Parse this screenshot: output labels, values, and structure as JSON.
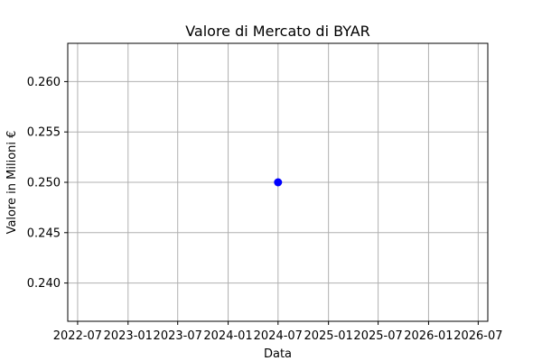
{
  "chart_data": {
    "type": "scatter",
    "title": "Valore di Mercato di BYAR",
    "xlabel": "Data",
    "ylabel": "Valore in Milioni €",
    "x_ticks": [
      "2022-07",
      "2023-01",
      "2023-07",
      "2024-01",
      "2024-07",
      "2025-01",
      "2025-07",
      "2026-01",
      "2026-07"
    ],
    "y_ticks": [
      "0.240",
      "0.245",
      "0.250",
      "0.255",
      "0.260"
    ],
    "xlim": [
      "2022-05-26",
      "2026-08-05"
    ],
    "ylim": [
      0.2362,
      0.2638
    ],
    "grid": true,
    "marker_color": "#0000ff",
    "points": [
      {
        "x": "2024-07-01",
        "y": 0.25
      }
    ]
  }
}
